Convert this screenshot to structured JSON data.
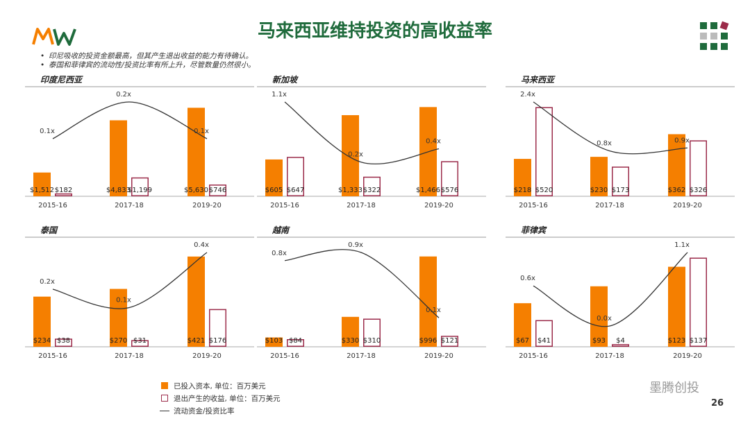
{
  "header": {
    "title": "马来西亚维持投资的高收益率",
    "bullets": [
      "印尼吸收的投资金额最高，但其产生退出收益的能力有待确认。",
      "泰国和菲律宾的流动性/投资比率有所上升，尽管数量仍然很小。"
    ]
  },
  "colors": {
    "invested": "#f57f00",
    "exit": "#9b2b4a",
    "ratio_line": "#333333",
    "title": "#1f6b3c"
  },
  "legend": {
    "invested": "已投入资本, 单位：百万美元",
    "exit": "退出产生的收益, 单位：百万美元",
    "ratio": "流动资金/投资比率"
  },
  "watermark": "墨腾创投",
  "page_number": "26",
  "chart_data": [
    {
      "type": "bar",
      "title": "印度尼西亚",
      "categories": [
        "2015-16",
        "2017-18",
        "2019-20"
      ],
      "series": [
        {
          "name": "已投入资本, 单位：百万美元",
          "values": [
            1512,
            4833,
            5630
          ],
          "labels": [
            "$1,512",
            "$4,833",
            "$5,630"
          ]
        },
        {
          "name": "退出产生的收益, 单位：百万美元",
          "values": [
            182,
            1199,
            746
          ],
          "labels": [
            "$182",
            "$1,199",
            "$746"
          ]
        }
      ],
      "ratio": {
        "name": "流动资金/投资比率",
        "values": [
          0.1,
          0.2,
          0.1
        ],
        "labels": [
          "0.1x",
          "0.2x",
          "0.1x"
        ]
      },
      "ylim": [
        0,
        6000
      ]
    },
    {
      "type": "bar",
      "title": "新加坡",
      "categories": [
        "2015-16",
        "2017-18",
        "2019-20"
      ],
      "series": [
        {
          "name": "已投入资本, 单位：百万美元",
          "values": [
            605,
            1333,
            1466
          ],
          "labels": [
            "$605",
            "$1,333",
            "$1,466"
          ]
        },
        {
          "name": "退出产生的收益, 单位：百万美元",
          "values": [
            647,
            322,
            576
          ],
          "labels": [
            "$647",
            "$322",
            "$576"
          ]
        }
      ],
      "ratio": {
        "name": "流动资金/投资比率",
        "values": [
          1.1,
          0.2,
          0.4
        ],
        "labels": [
          "1.1x",
          "0.2x",
          "0.4x"
        ]
      },
      "ylim": [
        0,
        1550
      ]
    },
    {
      "type": "bar",
      "title": "马来西亚",
      "categories": [
        "2015-16",
        "2017-18",
        "2019-20"
      ],
      "series": [
        {
          "name": "已投入资本, 单位：百万美元",
          "values": [
            218,
            230,
            362
          ],
          "labels": [
            "$218",
            "$230",
            "$362"
          ]
        },
        {
          "name": "退出产生的收益, 单位：百万美元",
          "values": [
            520,
            173,
            326
          ],
          "labels": [
            "$520",
            "$173",
            "$326"
          ]
        }
      ],
      "ratio": {
        "name": "流动资金/投资比率",
        "values": [
          2.4,
          0.8,
          0.9
        ],
        "labels": [
          "2.4x",
          "0.8x",
          "0.9x"
        ]
      },
      "ylim": [
        0,
        550
      ]
    },
    {
      "type": "bar",
      "title": "泰国",
      "categories": [
        "2015-16",
        "2017-18",
        "2019-20"
      ],
      "series": [
        {
          "name": "已投入资本, 单位：百万美元",
          "values": [
            234,
            270,
            421
          ],
          "labels": [
            "$234",
            "$270",
            "$421"
          ]
        },
        {
          "name": "退出产生的收益, 单位：百万美元",
          "values": [
            38,
            31,
            176
          ],
          "labels": [
            "$38",
            "$31",
            "$176"
          ]
        }
      ],
      "ratio": {
        "name": "流动资金/投资比率",
        "values": [
          0.2,
          0.1,
          0.4
        ],
        "labels": [
          "0.2x",
          "0.1x",
          "0.4x"
        ]
      },
      "ylim": [
        0,
        440
      ]
    },
    {
      "type": "bar",
      "title": "越南",
      "categories": [
        "2015-16",
        "2017-18",
        "2019-20"
      ],
      "series": [
        {
          "name": "已投入资本, 单位：百万美元",
          "values": [
            103,
            330,
            996
          ],
          "labels": [
            "$103",
            "$330",
            "$996"
          ]
        },
        {
          "name": "退出产生的收益, 单位：百万美元",
          "values": [
            84,
            310,
            121
          ],
          "labels": [
            "$84",
            "$310",
            "$121"
          ]
        }
      ],
      "ratio": {
        "name": "流动资金/投资比率",
        "values": [
          0.8,
          0.9,
          0.1
        ],
        "labels": [
          "0.8x",
          "0.9x",
          "0.1x"
        ]
      },
      "ylim": [
        0,
        1040
      ]
    },
    {
      "type": "bar",
      "title": "菲律宾",
      "categories": [
        "2015-16",
        "2017-18",
        "2019-20"
      ],
      "series": [
        {
          "name": "已投入资本, 单位：百万美元",
          "values": [
            67,
            93,
            123
          ],
          "labels": [
            "$67",
            "$93",
            "$123"
          ]
        },
        {
          "name": "退出产生的收益, 单位：百万美元",
          "values": [
            41,
            4,
            137
          ],
          "labels": [
            "$41",
            "$4",
            "$137"
          ]
        }
      ],
      "ratio": {
        "name": "流动资金/投资比率",
        "values": [
          0.6,
          0.0,
          1.1
        ],
        "labels": [
          "0.6x",
          "0.0x",
          "1.1x"
        ]
      },
      "ylim": [
        0,
        145
      ]
    }
  ]
}
